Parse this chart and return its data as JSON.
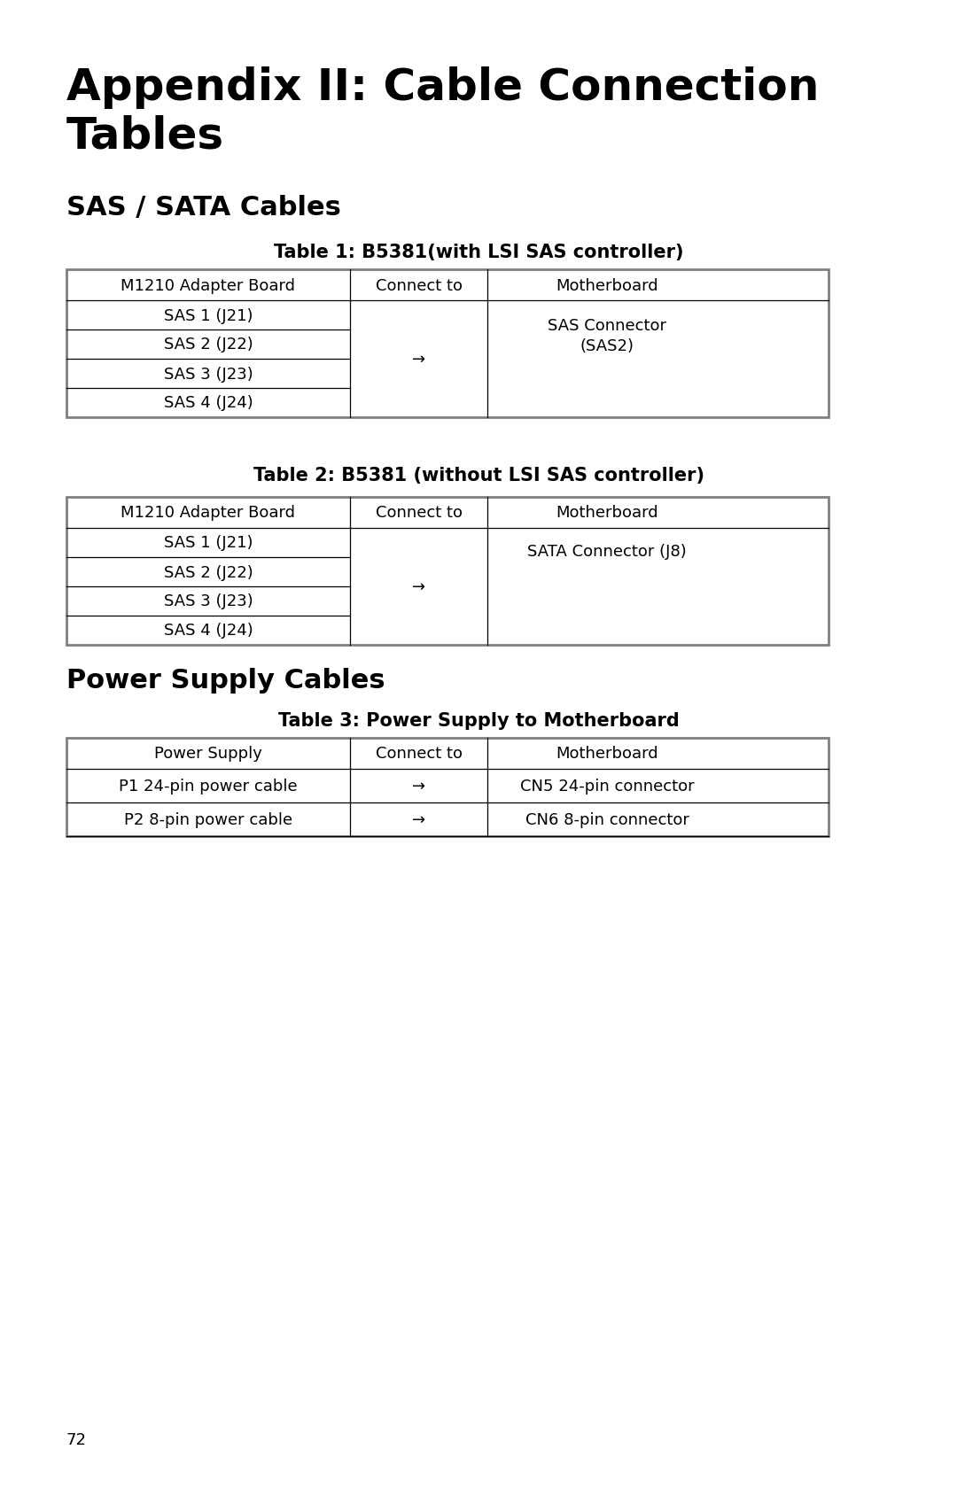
{
  "bg_color": "#ffffff",
  "text_color": "#000000",
  "title_main_line1": "Appendix II: Cable Connection",
  "title_main_line2": "Tables",
  "section1_title": "SAS / SATA Cables",
  "section2_title": "Power Supply Cables",
  "table1_caption": "Table 1: B5381(with LSI SAS controller)",
  "table2_caption": "Table 2: B5381 (without LSI SAS controller)",
  "table3_caption": "Table 3: Power Supply to Motherboard",
  "table1_headers": [
    "M1210 Adapter Board",
    "Connect to",
    "Motherboard"
  ],
  "table1_col1_cells": [
    "SAS 1 (J21)",
    "SAS 2 (J22)",
    "SAS 3 (J23)",
    "SAS 4 (J24)"
  ],
  "table1_arrow": "→",
  "table1_mb_text": "SAS Connector\n(SAS2)",
  "table2_headers": [
    "M1210 Adapter Board",
    "Connect to",
    "Motherboard"
  ],
  "table2_col1_cells": [
    "SAS 1 (J21)",
    "SAS 2 (J22)",
    "SAS 3 (J23)",
    "SAS 4 (J24)"
  ],
  "table2_arrow": "→",
  "table2_mb_text": "SATA Connector (J8)",
  "table3_headers": [
    "Power Supply",
    "Connect to",
    "Motherboard"
  ],
  "table3_rows": [
    [
      "P1 24-pin power cable",
      "→",
      "CN5 24-pin connector"
    ],
    [
      "P2 8-pin power cable",
      "→",
      "CN6 8-pin connector"
    ]
  ],
  "page_number": "72",
  "table_border_color": "#808080",
  "table_inner_color": "#000000"
}
